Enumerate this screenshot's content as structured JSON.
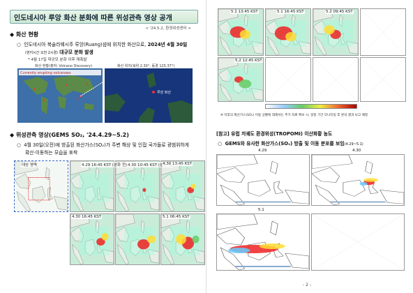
{
  "title": "인도네시아 루앙 화산 분화에 따른 위성관측 영상 공개",
  "date_note": "< '24.5.2, 환경위성센터 >",
  "section1": {
    "heading": "화산 현황",
    "bullet": "인도네시아 북술라웨시주 루앙(Ruang)섬에 위치한 화산으로,",
    "bullet_emph": "2024년 4월 30일",
    "bullet_small": "(현지시간 오전 2시경)",
    "bullet_line2": "대규모 분화 발생",
    "note": "* 4월 17일 대규모 분화 이후 재폭발",
    "figures": [
      {
        "caption": "화산 현황(출처: Volcano Discovery)",
        "inset_title": "Currently erupting volcanoes"
      },
      {
        "caption": "화산 위치(북위 2.30°, 동경 125.37°)",
        "label": "루앙 화산"
      }
    ]
  },
  "section2": {
    "heading": "위성관측 영상(GEMS SO₂, '24.4.29~5.2)",
    "bullet_line1": "4월 30일(오전)에 방출된 화산가스(SO₂)가 주변 해상 및 인접 국가들로 광범위하게",
    "bullet_line2": "확산·이동하는 모습을 포착",
    "region_label": "대상 영역",
    "panels": [
      "4.29 16:45 KST (분화 전)",
      "4.30 10:45 KST (분화 후)",
      "4.30 13:45 KST",
      "4.30 16:45 KST",
      "5.1 06:45 KST"
    ]
  },
  "right": {
    "panels": [
      "5.1 13:45 KST",
      "5.1 16:45 KST",
      "5.2 09:45 KST",
      "5.2 12:45 KST"
    ],
    "note": "※ 이후의 화산가스(SO₂) 이동 상황에 대해서는 추가 자료 확보 시, 일정 기간 모니터링 후 분석 결과 보고 예정",
    "reference": {
      "heading": "[참고] 유럽 저궤도 환경위성(TROPOMI) 이산화황 농도",
      "bullet": "GEMS와 유사한 화산가스(SO₂) 방출 및 이동 분포를 보임",
      "bullet_range": "(4.29~5.1)",
      "panels": [
        "4.29",
        "4.30",
        "5.1"
      ]
    }
  },
  "page_number": "- 2 -"
}
